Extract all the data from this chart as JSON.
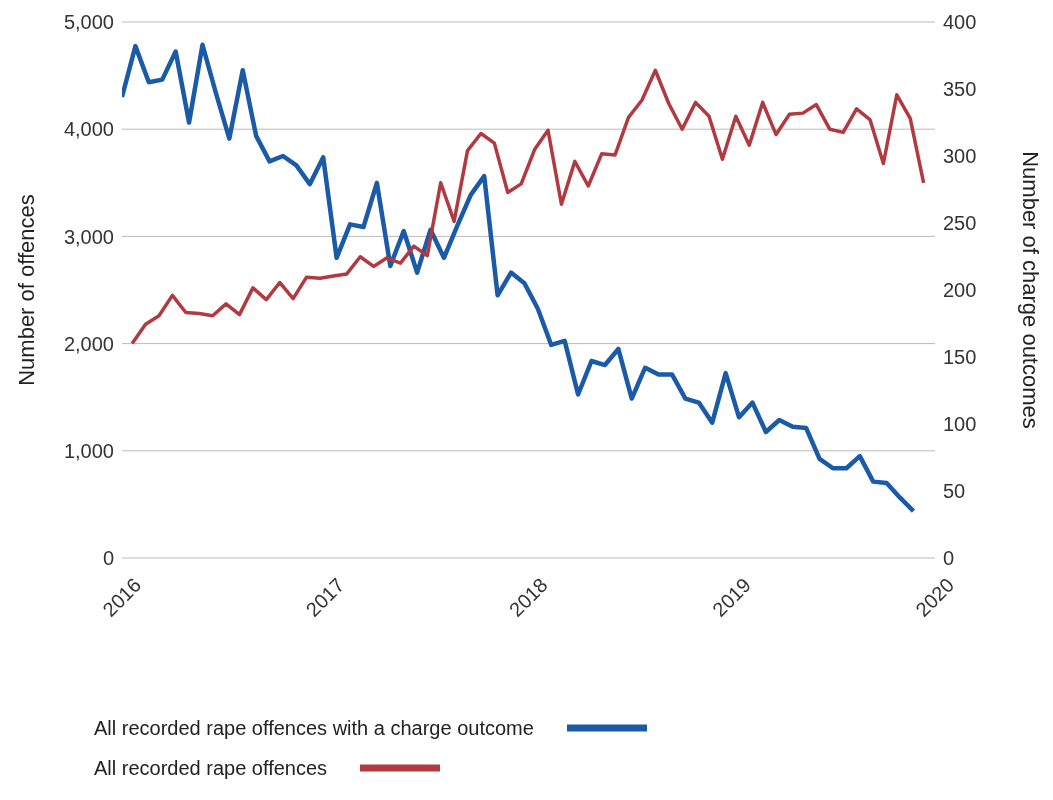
{
  "chart_data": {
    "type": "line",
    "ylabel": "Number of offences",
    "y2label": "Number of charge outcomes",
    "xlim": [
      2016,
      2020
    ],
    "xticks": [
      2016,
      2017,
      2018,
      2019,
      2020
    ],
    "ylim": [
      0,
      5000
    ],
    "yticks": [
      {
        "value": 0,
        "label": "0"
      },
      {
        "value": 1000,
        "label": "1,000"
      },
      {
        "value": 2000,
        "label": "2,000"
      },
      {
        "value": 3000,
        "label": "3,000"
      },
      {
        "value": 4000,
        "label": "4,000"
      },
      {
        "value": 5000,
        "label": "5,000"
      }
    ],
    "y2lim": [
      0,
      400
    ],
    "y2ticks": [
      0,
      50,
      100,
      150,
      200,
      250,
      300,
      350,
      400
    ],
    "grid": "y",
    "legend": "bottom",
    "marker": "none",
    "line_style": "solid",
    "series": [
      {
        "name": "All recorded rape offences with a charge outcome",
        "color": "#1a5aa6",
        "axis": "y2",
        "x": [
          2016,
          2016.066,
          2016.132,
          2016.198,
          2016.264,
          2016.33,
          2016.396,
          2016.462,
          2016.528,
          2016.594,
          2016.66,
          2016.726,
          2016.792,
          2016.858,
          2016.924,
          2016.99,
          2017.056,
          2017.122,
          2017.188,
          2017.254,
          2017.32,
          2017.386,
          2017.452,
          2017.518,
          2017.584,
          2017.65,
          2017.716,
          2017.782,
          2017.848,
          2017.914,
          2017.98,
          2018.046,
          2018.112,
          2018.178,
          2018.244,
          2018.31,
          2018.376,
          2018.442,
          2018.508,
          2018.574,
          2018.64,
          2018.706,
          2018.772,
          2018.838,
          2018.904,
          2018.97,
          2019.036,
          2019.102,
          2019.168,
          2019.234,
          2019.3,
          2019.366,
          2019.432,
          2019.498,
          2019.564,
          2019.63,
          2019.696,
          2019.762,
          2019.828,
          2019.894
        ],
        "values": [
          344,
          382,
          355,
          357,
          378,
          325,
          383,
          347,
          313,
          364,
          315,
          296,
          300,
          293,
          279,
          299,
          224,
          249,
          247,
          280,
          218,
          244,
          213,
          245,
          224,
          248,
          271,
          285,
          196,
          213,
          205,
          186,
          159,
          162,
          122,
          147,
          144,
          156,
          119,
          142,
          137,
          137,
          119,
          116,
          101,
          138,
          105,
          116,
          94,
          103,
          98,
          97,
          74,
          67,
          67,
          76,
          57,
          56,
          45,
          35
        ]
      },
      {
        "name": "All recorded rape offences",
        "color": "#b03a40",
        "axis": "y",
        "x": [
          2016.05,
          2016.116,
          2016.182,
          2016.248,
          2016.314,
          2016.38,
          2016.446,
          2016.512,
          2016.578,
          2016.644,
          2016.71,
          2016.776,
          2016.842,
          2016.908,
          2016.974,
          2017.04,
          2017.106,
          2017.172,
          2017.238,
          2017.304,
          2017.37,
          2017.436,
          2017.502,
          2017.568,
          2017.634,
          2017.7,
          2017.766,
          2017.832,
          2017.898,
          2017.964,
          2018.03,
          2018.096,
          2018.162,
          2018.228,
          2018.294,
          2018.36,
          2018.426,
          2018.492,
          2018.558,
          2018.624,
          2018.69,
          2018.756,
          2018.822,
          2018.888,
          2018.954,
          2019.02,
          2019.086,
          2019.152,
          2019.218,
          2019.284,
          2019.35,
          2019.416,
          2019.482,
          2019.548,
          2019.614,
          2019.68,
          2019.746,
          2019.812,
          2019.878,
          2019.944
        ],
        "values": [
          2000,
          2180,
          2260,
          2450,
          2290,
          2280,
          2260,
          2370,
          2270,
          2520,
          2410,
          2570,
          2420,
          2620,
          2610,
          2630,
          2650,
          2810,
          2720,
          2800,
          2750,
          2910,
          2820,
          3500,
          3140,
          3800,
          3960,
          3870,
          3410,
          3490,
          3810,
          3990,
          3300,
          3700,
          3470,
          3770,
          3760,
          4110,
          4270,
          4550,
          4240,
          4000,
          4250,
          4120,
          3720,
          4120,
          3850,
          4250,
          3950,
          4140,
          4150,
          4230,
          4000,
          3970,
          4190,
          4090,
          3680,
          4320,
          4100,
          3500
        ]
      }
    ]
  }
}
